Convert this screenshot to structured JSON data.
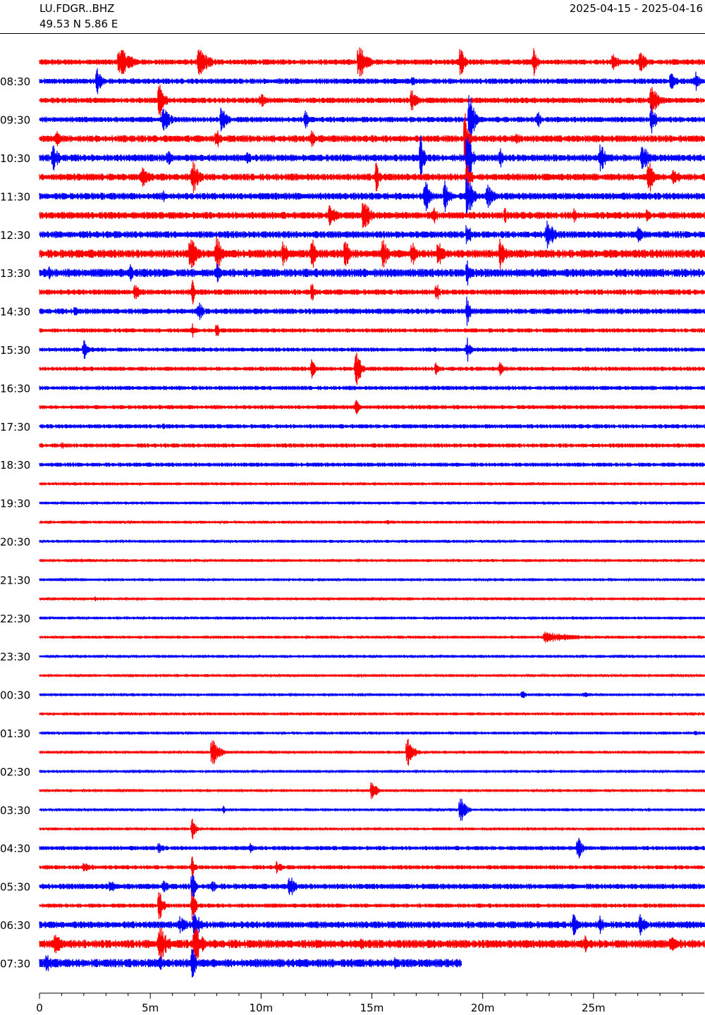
{
  "header": {
    "station": "LU.FDGR..BHZ",
    "coords": "49.53 N 5.86 E",
    "date_range": "2025-04-15 - 2025-04-16"
  },
  "chart_data": {
    "type": "line",
    "title": "",
    "xlabel": "",
    "ylabel": "",
    "xlim": [
      0,
      30
    ],
    "x_unit": "minutes",
    "x_ticks": [
      {
        "value": 0,
        "label": "0"
      },
      {
        "value": 5,
        "label": "5m"
      },
      {
        "value": 10,
        "label": "10m"
      },
      {
        "value": 15,
        "label": "15m"
      },
      {
        "value": 20,
        "label": "20m"
      },
      {
        "value": 25,
        "label": "25m"
      }
    ],
    "minor_tick_step_minutes": 1,
    "trace_colors": [
      "#ff0000",
      "#0000ff"
    ],
    "hour_labels": [
      "08:30",
      "09:30",
      "10:30",
      "11:30",
      "12:30",
      "13:30",
      "14:30",
      "15:30",
      "16:30",
      "17:30",
      "18:30",
      "19:30",
      "20:30",
      "21:30",
      "22:30",
      "23:30",
      "00:30",
      "01:30",
      "02:30",
      "03:30",
      "04:30",
      "05:30",
      "06:30",
      "07:30"
    ],
    "traces": [
      {
        "start": "08:00",
        "noise": 4,
        "last_minute": 30,
        "events": [
          {
            "minute": 3.6,
            "amp": 24,
            "dur": 1.2
          },
          {
            "minute": 7.2,
            "amp": 22,
            "dur": 1.0
          },
          {
            "minute": 14.4,
            "amp": 28,
            "dur": 0.8
          },
          {
            "minute": 19.0,
            "amp": 25,
            "dur": 0.4
          },
          {
            "minute": 22.3,
            "amp": 30,
            "dur": 0.3
          },
          {
            "minute": 25.9,
            "amp": 16,
            "dur": 0.5
          },
          {
            "minute": 27.1,
            "amp": 18,
            "dur": 0.7
          }
        ]
      },
      {
        "start": "08:30",
        "noise": 4,
        "last_minute": 30,
        "events": [
          {
            "minute": 2.6,
            "amp": 20,
            "dur": 0.5
          },
          {
            "minute": 16.8,
            "amp": 12,
            "dur": 0.4
          },
          {
            "minute": 28.5,
            "amp": 14,
            "dur": 0.6
          },
          {
            "minute": 29.6,
            "amp": 16,
            "dur": 0.5
          }
        ]
      },
      {
        "start": "09:00",
        "noise": 4,
        "last_minute": 30,
        "events": [
          {
            "minute": 5.4,
            "amp": 26,
            "dur": 0.6
          },
          {
            "minute": 10.0,
            "amp": 12,
            "dur": 0.5
          },
          {
            "minute": 16.8,
            "amp": 18,
            "dur": 0.5
          },
          {
            "minute": 27.6,
            "amp": 22,
            "dur": 0.8
          }
        ]
      },
      {
        "start": "09:30",
        "noise": 4,
        "last_minute": 30,
        "events": [
          {
            "minute": 5.6,
            "amp": 24,
            "dur": 0.6
          },
          {
            "minute": 8.2,
            "amp": 20,
            "dur": 0.6
          },
          {
            "minute": 12.0,
            "amp": 16,
            "dur": 0.3
          },
          {
            "minute": 19.4,
            "amp": 50,
            "dur": 0.4
          },
          {
            "minute": 22.5,
            "amp": 14,
            "dur": 0.3
          },
          {
            "minute": 27.6,
            "amp": 22,
            "dur": 0.5
          }
        ]
      },
      {
        "start": "10:00",
        "noise": 5,
        "last_minute": 30,
        "events": [
          {
            "minute": 0.8,
            "amp": 16,
            "dur": 0.5
          },
          {
            "minute": 8.0,
            "amp": 20,
            "dur": 0.3
          },
          {
            "minute": 12.3,
            "amp": 16,
            "dur": 0.3
          },
          {
            "minute": 19.2,
            "amp": 40,
            "dur": 0.4
          },
          {
            "minute": 21.5,
            "amp": 12,
            "dur": 0.4
          }
        ]
      },
      {
        "start": "10:30",
        "noise": 5,
        "last_minute": 30,
        "events": [
          {
            "minute": 0.6,
            "amp": 22,
            "dur": 0.6
          },
          {
            "minute": 5.8,
            "amp": 12,
            "dur": 0.5
          },
          {
            "minute": 9.4,
            "amp": 12,
            "dur": 0.4
          },
          {
            "minute": 17.2,
            "amp": 40,
            "dur": 0.3
          },
          {
            "minute": 19.3,
            "amp": 45,
            "dur": 0.5
          },
          {
            "minute": 20.8,
            "amp": 14,
            "dur": 0.4
          },
          {
            "minute": 25.3,
            "amp": 24,
            "dur": 0.7
          },
          {
            "minute": 27.2,
            "amp": 22,
            "dur": 0.7
          }
        ]
      },
      {
        "start": "11:00",
        "noise": 5,
        "last_minute": 30,
        "events": [
          {
            "minute": 4.6,
            "amp": 16,
            "dur": 1.0
          },
          {
            "minute": 6.9,
            "amp": 28,
            "dur": 0.6
          },
          {
            "minute": 15.2,
            "amp": 24,
            "dur": 0.3
          },
          {
            "minute": 19.3,
            "amp": 22,
            "dur": 0.5
          },
          {
            "minute": 27.5,
            "amp": 26,
            "dur": 0.6
          },
          {
            "minute": 28.6,
            "amp": 18,
            "dur": 0.6
          }
        ]
      },
      {
        "start": "11:30",
        "noise": 5,
        "last_minute": 30,
        "events": [
          {
            "minute": 5.6,
            "amp": 10,
            "dur": 0.4
          },
          {
            "minute": 17.4,
            "amp": 28,
            "dur": 0.5
          },
          {
            "minute": 18.3,
            "amp": 24,
            "dur": 0.5
          },
          {
            "minute": 19.3,
            "amp": 40,
            "dur": 0.5
          },
          {
            "minute": 20.2,
            "amp": 22,
            "dur": 0.6
          }
        ]
      },
      {
        "start": "12:00",
        "noise": 5,
        "last_minute": 30,
        "events": [
          {
            "minute": 13.1,
            "amp": 22,
            "dur": 0.6
          },
          {
            "minute": 14.6,
            "amp": 24,
            "dur": 0.8
          },
          {
            "minute": 17.8,
            "amp": 14,
            "dur": 0.4
          },
          {
            "minute": 21.0,
            "amp": 12,
            "dur": 0.4
          },
          {
            "minute": 24.1,
            "amp": 12,
            "dur": 0.5
          },
          {
            "minute": 27.4,
            "amp": 10,
            "dur": 0.4
          }
        ]
      },
      {
        "start": "12:30",
        "noise": 5,
        "last_minute": 30,
        "events": [
          {
            "minute": 19.3,
            "amp": 22,
            "dur": 0.4
          },
          {
            "minute": 22.9,
            "amp": 28,
            "dur": 0.6
          },
          {
            "minute": 27.0,
            "amp": 12,
            "dur": 0.8
          }
        ]
      },
      {
        "start": "13:00",
        "noise": 6,
        "last_minute": 30,
        "events": [
          {
            "minute": 6.8,
            "amp": 32,
            "dur": 0.6
          },
          {
            "minute": 8.0,
            "amp": 30,
            "dur": 0.5
          },
          {
            "minute": 11.0,
            "amp": 24,
            "dur": 0.4
          },
          {
            "minute": 12.3,
            "amp": 24,
            "dur": 0.5
          },
          {
            "minute": 13.8,
            "amp": 26,
            "dur": 0.5
          },
          {
            "minute": 15.5,
            "amp": 24,
            "dur": 0.5
          },
          {
            "minute": 16.8,
            "amp": 22,
            "dur": 0.4
          },
          {
            "minute": 18.0,
            "amp": 24,
            "dur": 0.5
          },
          {
            "minute": 20.8,
            "amp": 26,
            "dur": 0.6
          }
        ]
      },
      {
        "start": "13:30",
        "noise": 6,
        "last_minute": 30,
        "events": [
          {
            "minute": 0.4,
            "amp": 10,
            "dur": 1.2
          },
          {
            "minute": 4.1,
            "amp": 14,
            "dur": 0.5
          },
          {
            "minute": 8.0,
            "amp": 20,
            "dur": 0.3
          },
          {
            "minute": 19.3,
            "amp": 24,
            "dur": 0.3
          }
        ]
      },
      {
        "start": "14:00",
        "noise": 4,
        "last_minute": 30,
        "events": [
          {
            "minute": 4.3,
            "amp": 14,
            "dur": 0.5
          },
          {
            "minute": 6.9,
            "amp": 20,
            "dur": 0.3
          },
          {
            "minute": 12.3,
            "amp": 16,
            "dur": 0.3
          },
          {
            "minute": 17.9,
            "amp": 18,
            "dur": 0.3
          }
        ]
      },
      {
        "start": "14:30",
        "noise": 4,
        "last_minute": 30,
        "events": [
          {
            "minute": 1.6,
            "amp": 8,
            "dur": 0.4
          },
          {
            "minute": 7.2,
            "amp": 16,
            "dur": 0.4
          },
          {
            "minute": 19.3,
            "amp": 24,
            "dur": 0.3
          }
        ]
      },
      {
        "start": "15:00",
        "noise": 3,
        "last_minute": 30,
        "events": [
          {
            "minute": 6.9,
            "amp": 12,
            "dur": 0.3
          },
          {
            "minute": 8.0,
            "amp": 14,
            "dur": 0.3
          }
        ]
      },
      {
        "start": "15:30",
        "noise": 3,
        "last_minute": 30,
        "events": [
          {
            "minute": 2.0,
            "amp": 16,
            "dur": 0.6
          },
          {
            "minute": 19.3,
            "amp": 20,
            "dur": 0.3
          }
        ]
      },
      {
        "start": "16:00",
        "noise": 3,
        "last_minute": 30,
        "events": [
          {
            "minute": 14.3,
            "amp": 28,
            "dur": 0.5
          },
          {
            "minute": 12.3,
            "amp": 18,
            "dur": 0.3
          },
          {
            "minute": 17.9,
            "amp": 16,
            "dur": 0.3
          },
          {
            "minute": 20.8,
            "amp": 14,
            "dur": 0.3
          }
        ]
      },
      {
        "start": "16:30",
        "noise": 3,
        "last_minute": 30,
        "events": []
      },
      {
        "start": "17:00",
        "noise": 3,
        "last_minute": 30,
        "events": [
          {
            "minute": 14.3,
            "amp": 12,
            "dur": 0.4
          }
        ]
      },
      {
        "start": "17:30",
        "noise": 3,
        "last_minute": 30,
        "events": [
          {
            "minute": 5.6,
            "amp": 5,
            "dur": 0.3
          }
        ]
      },
      {
        "start": "18:00",
        "noise": 3,
        "last_minute": 30,
        "events": [
          {
            "minute": 1.0,
            "amp": 6,
            "dur": 0.4
          }
        ]
      },
      {
        "start": "18:30",
        "noise": 3,
        "last_minute": 30,
        "events": []
      },
      {
        "start": "19:00",
        "noise": 2,
        "last_minute": 30,
        "events": []
      },
      {
        "start": "19:30",
        "noise": 2,
        "last_minute": 30,
        "events": []
      },
      {
        "start": "20:00",
        "noise": 2,
        "last_minute": 30,
        "events": [
          {
            "minute": 15.7,
            "amp": 5,
            "dur": 0.3
          }
        ]
      },
      {
        "start": "20:30",
        "noise": 2,
        "last_minute": 30,
        "events": []
      },
      {
        "start": "21:00",
        "noise": 2,
        "last_minute": 30,
        "events": []
      },
      {
        "start": "21:30",
        "noise": 2,
        "last_minute": 30,
        "events": []
      },
      {
        "start": "22:00",
        "noise": 2,
        "last_minute": 30,
        "events": [
          {
            "minute": 2.5,
            "amp": 4,
            "dur": 0.3
          }
        ]
      },
      {
        "start": "22:30",
        "noise": 2,
        "last_minute": 30,
        "events": []
      },
      {
        "start": "23:00",
        "noise": 2,
        "last_minute": 30,
        "events": [
          {
            "minute": 22.8,
            "amp": 8,
            "dur": 3.5
          }
        ]
      },
      {
        "start": "23:30",
        "noise": 2,
        "last_minute": 30,
        "events": []
      },
      {
        "start": "00:00",
        "noise": 2,
        "last_minute": 30,
        "events": []
      },
      {
        "start": "00:30",
        "noise": 2,
        "last_minute": 30,
        "events": [
          {
            "minute": 21.8,
            "amp": 8,
            "dur": 0.3
          },
          {
            "minute": 24.6,
            "amp": 6,
            "dur": 0.3
          }
        ]
      },
      {
        "start": "01:00",
        "noise": 2,
        "last_minute": 30,
        "events": []
      },
      {
        "start": "01:30",
        "noise": 2,
        "last_minute": 30,
        "events": [
          {
            "minute": 29.6,
            "amp": 6,
            "dur": 0.3
          }
        ]
      },
      {
        "start": "02:00",
        "noise": 2,
        "last_minute": 30,
        "events": [
          {
            "minute": 7.8,
            "amp": 24,
            "dur": 0.6
          },
          {
            "minute": 16.6,
            "amp": 22,
            "dur": 0.6
          }
        ]
      },
      {
        "start": "02:30",
        "noise": 2,
        "last_minute": 30,
        "events": []
      },
      {
        "start": "03:00",
        "noise": 2,
        "last_minute": 30,
        "events": [
          {
            "minute": 15.0,
            "amp": 18,
            "dur": 0.4
          }
        ]
      },
      {
        "start": "03:30",
        "noise": 2,
        "last_minute": 30,
        "events": [
          {
            "minute": 8.3,
            "amp": 6,
            "dur": 0.3
          },
          {
            "minute": 19.0,
            "amp": 20,
            "dur": 0.5
          }
        ]
      },
      {
        "start": "04:00",
        "noise": 2,
        "last_minute": 30,
        "events": [
          {
            "minute": 6.9,
            "amp": 20,
            "dur": 0.3
          }
        ]
      },
      {
        "start": "04:30",
        "noise": 3,
        "last_minute": 30,
        "events": [
          {
            "minute": 5.4,
            "amp": 10,
            "dur": 0.4
          },
          {
            "minute": 9.5,
            "amp": 8,
            "dur": 0.5
          },
          {
            "minute": 24.3,
            "amp": 18,
            "dur": 0.5
          }
        ]
      },
      {
        "start": "05:00",
        "noise": 3,
        "last_minute": 30,
        "events": [
          {
            "minute": 2.0,
            "amp": 8,
            "dur": 1.2
          },
          {
            "minute": 10.7,
            "amp": 10,
            "dur": 0.6
          },
          {
            "minute": 6.9,
            "amp": 18,
            "dur": 0.3
          }
        ]
      },
      {
        "start": "05:30",
        "noise": 4,
        "last_minute": 30,
        "events": [
          {
            "minute": 3.2,
            "amp": 10,
            "dur": 0.8
          },
          {
            "minute": 5.6,
            "amp": 12,
            "dur": 0.5
          },
          {
            "minute": 7.8,
            "amp": 10,
            "dur": 0.6
          },
          {
            "minute": 11.3,
            "amp": 18,
            "dur": 0.6
          },
          {
            "minute": 6.9,
            "amp": 24,
            "dur": 0.3
          }
        ]
      },
      {
        "start": "06:00",
        "noise": 3,
        "last_minute": 30,
        "events": [
          {
            "minute": 5.4,
            "amp": 24,
            "dur": 0.4
          },
          {
            "minute": 6.9,
            "amp": 28,
            "dur": 0.3
          }
        ]
      },
      {
        "start": "06:30",
        "noise": 5,
        "last_minute": 30,
        "events": [
          {
            "minute": 6.3,
            "amp": 16,
            "dur": 0.8
          },
          {
            "minute": 7.0,
            "amp": 22,
            "dur": 0.6
          },
          {
            "minute": 24.1,
            "amp": 18,
            "dur": 0.5
          },
          {
            "minute": 25.3,
            "amp": 14,
            "dur": 0.5
          },
          {
            "minute": 27.1,
            "amp": 18,
            "dur": 0.6
          }
        ]
      },
      {
        "start": "07:00",
        "noise": 6,
        "last_minute": 30,
        "events": [
          {
            "minute": 0.7,
            "amp": 20,
            "dur": 0.6
          },
          {
            "minute": 5.4,
            "amp": 30,
            "dur": 0.8
          },
          {
            "minute": 7.0,
            "amp": 30,
            "dur": 0.8
          },
          {
            "minute": 14.5,
            "amp": 14,
            "dur": 0.5
          },
          {
            "minute": 24.6,
            "amp": 14,
            "dur": 0.6
          },
          {
            "minute": 28.5,
            "amp": 14,
            "dur": 0.8
          }
        ]
      },
      {
        "start": "07:30",
        "noise": 6,
        "last_minute": 19.05,
        "events": [
          {
            "minute": 0.3,
            "amp": 16,
            "dur": 0.6
          },
          {
            "minute": 5.4,
            "amp": 16,
            "dur": 0.4
          },
          {
            "minute": 6.9,
            "amp": 30,
            "dur": 0.3
          },
          {
            "minute": 16.0,
            "amp": 10,
            "dur": 0.5
          }
        ]
      }
    ]
  }
}
